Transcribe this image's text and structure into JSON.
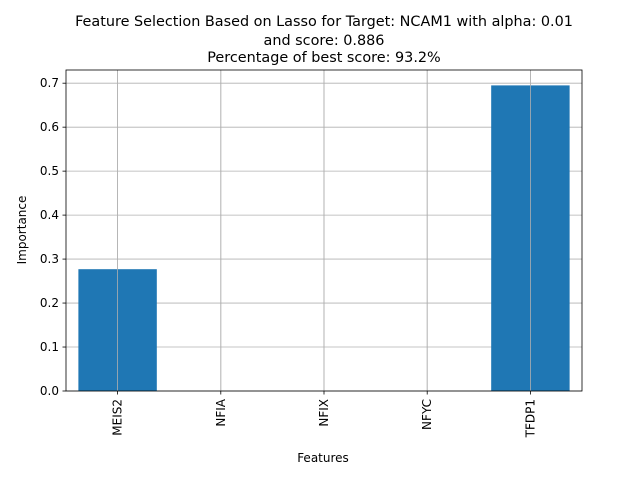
{
  "chart_data": {
    "type": "bar",
    "title": [
      "Feature Selection Based on Lasso for Target: NCAM1 with alpha: 0.01",
      "and score: 0.886",
      "Percentage of best score: 93.2%"
    ],
    "xlabel": "Features",
    "ylabel": "Importance",
    "categories": [
      "MEIS2",
      "NFIA",
      "NFIX",
      "NFYC",
      "TFDP1"
    ],
    "values": [
      0.277,
      0.0,
      0.0,
      0.0,
      0.695
    ],
    "ylim": [
      0,
      0.73
    ],
    "yticks": [
      0.0,
      0.1,
      0.2,
      0.3,
      0.4,
      0.5,
      0.6,
      0.7
    ],
    "ytick_labels": [
      "0.0",
      "0.1",
      "0.2",
      "0.3",
      "0.4",
      "0.5",
      "0.6",
      "0.7"
    ],
    "grid": true,
    "bar_color": "#1f77b4",
    "grid_color": "#b0b0b0"
  }
}
